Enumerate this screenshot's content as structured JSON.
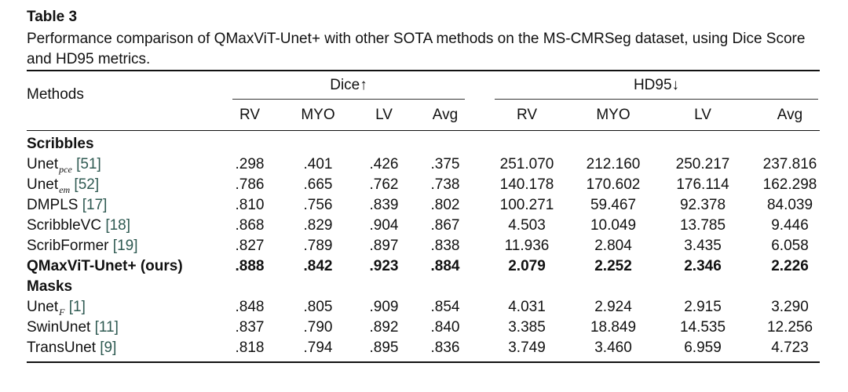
{
  "table": {
    "label": "Table 3",
    "caption": "Performance comparison of QMaxViT-Unet+ with other SOTA methods on the MS-CMRSeg dataset, using Dice Score and HD95 metrics.",
    "methods_header": "Methods",
    "groups": [
      {
        "label": "Dice↑"
      },
      {
        "label": "HD95↓"
      }
    ],
    "columns": [
      "RV",
      "MYO",
      "LV",
      "Avg",
      "RV",
      "MYO",
      "LV",
      "Avg"
    ],
    "sections": [
      {
        "title": "Scribbles",
        "rows": [
          {
            "name": "Unet",
            "sub": "pce",
            "cite": "[51]",
            "suffix": "",
            "bold": false,
            "values": [
              ".298",
              ".401",
              ".426",
              ".375",
              "251.070",
              "212.160",
              "250.217",
              "237.816"
            ]
          },
          {
            "name": "Unet",
            "sub": "em",
            "cite": "[52]",
            "suffix": "",
            "bold": false,
            "values": [
              ".786",
              ".665",
              ".762",
              ".738",
              "140.178",
              "170.602",
              "176.114",
              "162.298"
            ]
          },
          {
            "name": "DMPLS",
            "sub": "",
            "cite": "[17]",
            "suffix": "",
            "bold": false,
            "values": [
              ".810",
              ".756",
              ".839",
              ".802",
              "100.271",
              "59.467",
              "92.378",
              "84.039"
            ]
          },
          {
            "name": "ScribbleVC",
            "sub": "",
            "cite": "[18]",
            "suffix": "",
            "bold": false,
            "values": [
              ".868",
              ".829",
              ".904",
              ".867",
              "4.503",
              "10.049",
              "13.785",
              "9.446"
            ]
          },
          {
            "name": "ScribFormer",
            "sub": "",
            "cite": "[19]",
            "suffix": "",
            "bold": false,
            "values": [
              ".827",
              ".789",
              ".897",
              ".838",
              "11.936",
              "2.804",
              "3.435",
              "6.058"
            ]
          },
          {
            "name": "QMaxViT-Unet+",
            "sub": "",
            "cite": "",
            "suffix": "(ours)",
            "bold": true,
            "values": [
              ".888",
              ".842",
              ".923",
              ".884",
              "2.079",
              "2.252",
              "2.346",
              "2.226"
            ]
          }
        ]
      },
      {
        "title": "Masks",
        "rows": [
          {
            "name": "Unet",
            "sub": "F",
            "cite": "[1]",
            "suffix": "",
            "bold": false,
            "values": [
              ".848",
              ".805",
              ".909",
              ".854",
              "4.031",
              "2.924",
              "2.915",
              "3.290"
            ]
          },
          {
            "name": "SwinUnet",
            "sub": "",
            "cite": "[11]",
            "suffix": "",
            "bold": false,
            "values": [
              ".837",
              ".790",
              ".892",
              ".840",
              "3.385",
              "18.849",
              "14.535",
              "12.256"
            ]
          },
          {
            "name": "TransUnet",
            "sub": "",
            "cite": "[9]",
            "suffix": "",
            "bold": false,
            "values": [
              ".818",
              ".794",
              ".895",
              ".836",
              "3.749",
              "3.460",
              "6.959",
              "4.723"
            ]
          }
        ]
      }
    ]
  }
}
